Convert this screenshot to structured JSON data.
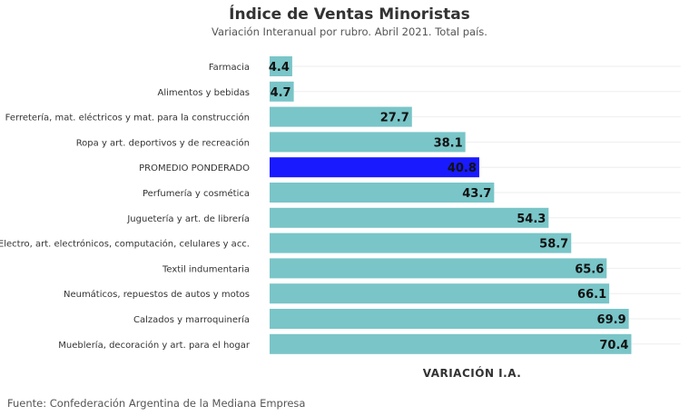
{
  "title": "Índice de Ventas Minoristas",
  "subtitle": "Variación Interanual por rubro. Abril 2021. Total país.",
  "source": "Fuente: Confederación Argentina de la Mediana Empresa",
  "colors": {
    "bar": "#79c5c8",
    "highlight": "#1a1aff",
    "label": "#111111",
    "category": "#333333"
  },
  "chart_data": {
    "type": "bar",
    "orientation": "horizontal",
    "categories": [
      "Farmacia",
      "Alimentos y bebidas",
      "Ferretería, mat. eléctricos y mat. para la construcción",
      "Ropa y art. deportivos y de recreación",
      "PROMEDIO PONDERADO",
      "Perfumería y cosmética",
      "Juguetería y art. de librería",
      "Electro, art. electrónicos, computación, celulares y acc.",
      "Textil indumentaria",
      "Neumáticos, repuestos de autos y motos",
      "Calzados y marroquinería",
      "Mueblería, decoración y art. para el hogar"
    ],
    "values": [
      4.4,
      4.7,
      27.7,
      38.1,
      40.8,
      43.7,
      54.3,
      58.7,
      65.6,
      66.1,
      69.9,
      70.4
    ],
    "value_labels": [
      "4.4",
      "4.7",
      "27.7",
      "38.1",
      "40.8",
      "43.7",
      "54.3",
      "58.7",
      "65.6",
      "66.1",
      "69.9",
      "70.4"
    ],
    "highlight": "PROMEDIO PONDERADO",
    "xlabel": "VARIACIÓN I.A.",
    "ylabel": "",
    "xlim": [
      0,
      80
    ],
    "grid": false,
    "legend": "none"
  }
}
